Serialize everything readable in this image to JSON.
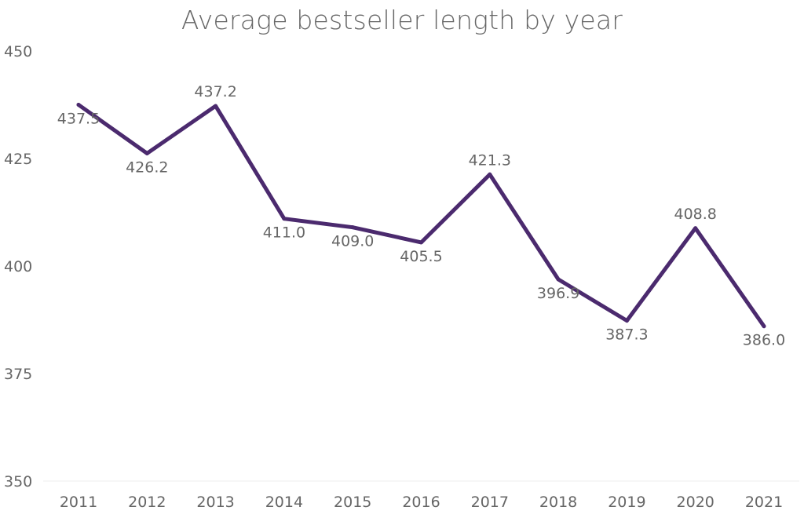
{
  "chart_data": {
    "type": "line",
    "title": "Average bestseller length by year",
    "xlabel": "",
    "ylabel": "",
    "x": [
      "2011",
      "2012",
      "2013",
      "2014",
      "2015",
      "2016",
      "2017",
      "2018",
      "2019",
      "2020",
      "2021"
    ],
    "series": [
      {
        "values": [
          437.5,
          426.2,
          437.2,
          411.0,
          409.0,
          405.5,
          421.3,
          396.9,
          387.3,
          408.8,
          386.0
        ],
        "labels": [
          "437.5",
          "426.2",
          "437.2",
          "411.0",
          "409.0",
          "405.5",
          "421.3",
          "396.9",
          "387.3",
          "408.8",
          "386.0"
        ],
        "color": "#4b2a6e"
      }
    ],
    "ylim": [
      350,
      450
    ],
    "yticks": [
      "350",
      "375",
      "400",
      "425",
      "450"
    ],
    "grid": false
  }
}
